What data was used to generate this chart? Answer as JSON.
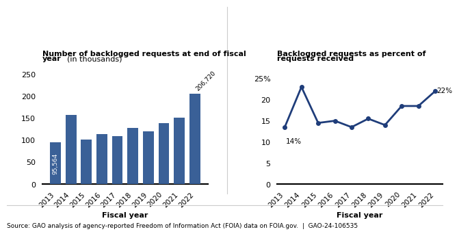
{
  "bar_years": [
    "2013",
    "2014",
    "2015",
    "2016",
    "2017",
    "2018",
    "2019",
    "2020",
    "2021",
    "2022"
  ],
  "bar_values": [
    95.564,
    158.0,
    102.0,
    114.0,
    110.0,
    128.0,
    120.0,
    140.0,
    152.0,
    206.72
  ],
  "bar_color": "#3A6097",
  "bar_label_2013": "95,564",
  "bar_label_2022": "206,720",
  "bar_xlabel": "Fiscal year",
  "bar_ylim": [
    0,
    270
  ],
  "bar_yticks": [
    0,
    50,
    100,
    150,
    200,
    250
  ],
  "line_years": [
    "2013",
    "2014",
    "2015",
    "2016",
    "2017",
    "2018",
    "2019",
    "2020",
    "2021",
    "2022"
  ],
  "line_values": [
    13.5,
    23.0,
    14.5,
    15.0,
    13.5,
    15.5,
    14.0,
    18.5,
    18.5,
    22.0
  ],
  "line_color": "#1F3D7A",
  "line_label_2013": "14%",
  "line_label_2022": "22%",
  "line_xlabel": "Fiscal year",
  "line_ylim": [
    0,
    28
  ],
  "line_yticks": [
    0,
    5,
    10,
    15,
    20,
    25
  ],
  "line_yticklabels": [
    "0",
    "5",
    "10",
    "15",
    "20",
    "25%"
  ],
  "source_text": "Source: GAO analysis of agency-reported Freedom of Information Act (FOIA) data on FOIA.gov.  |  GAO-24-106535",
  "background_color": "#FFFFFF",
  "text_color": "#000000"
}
